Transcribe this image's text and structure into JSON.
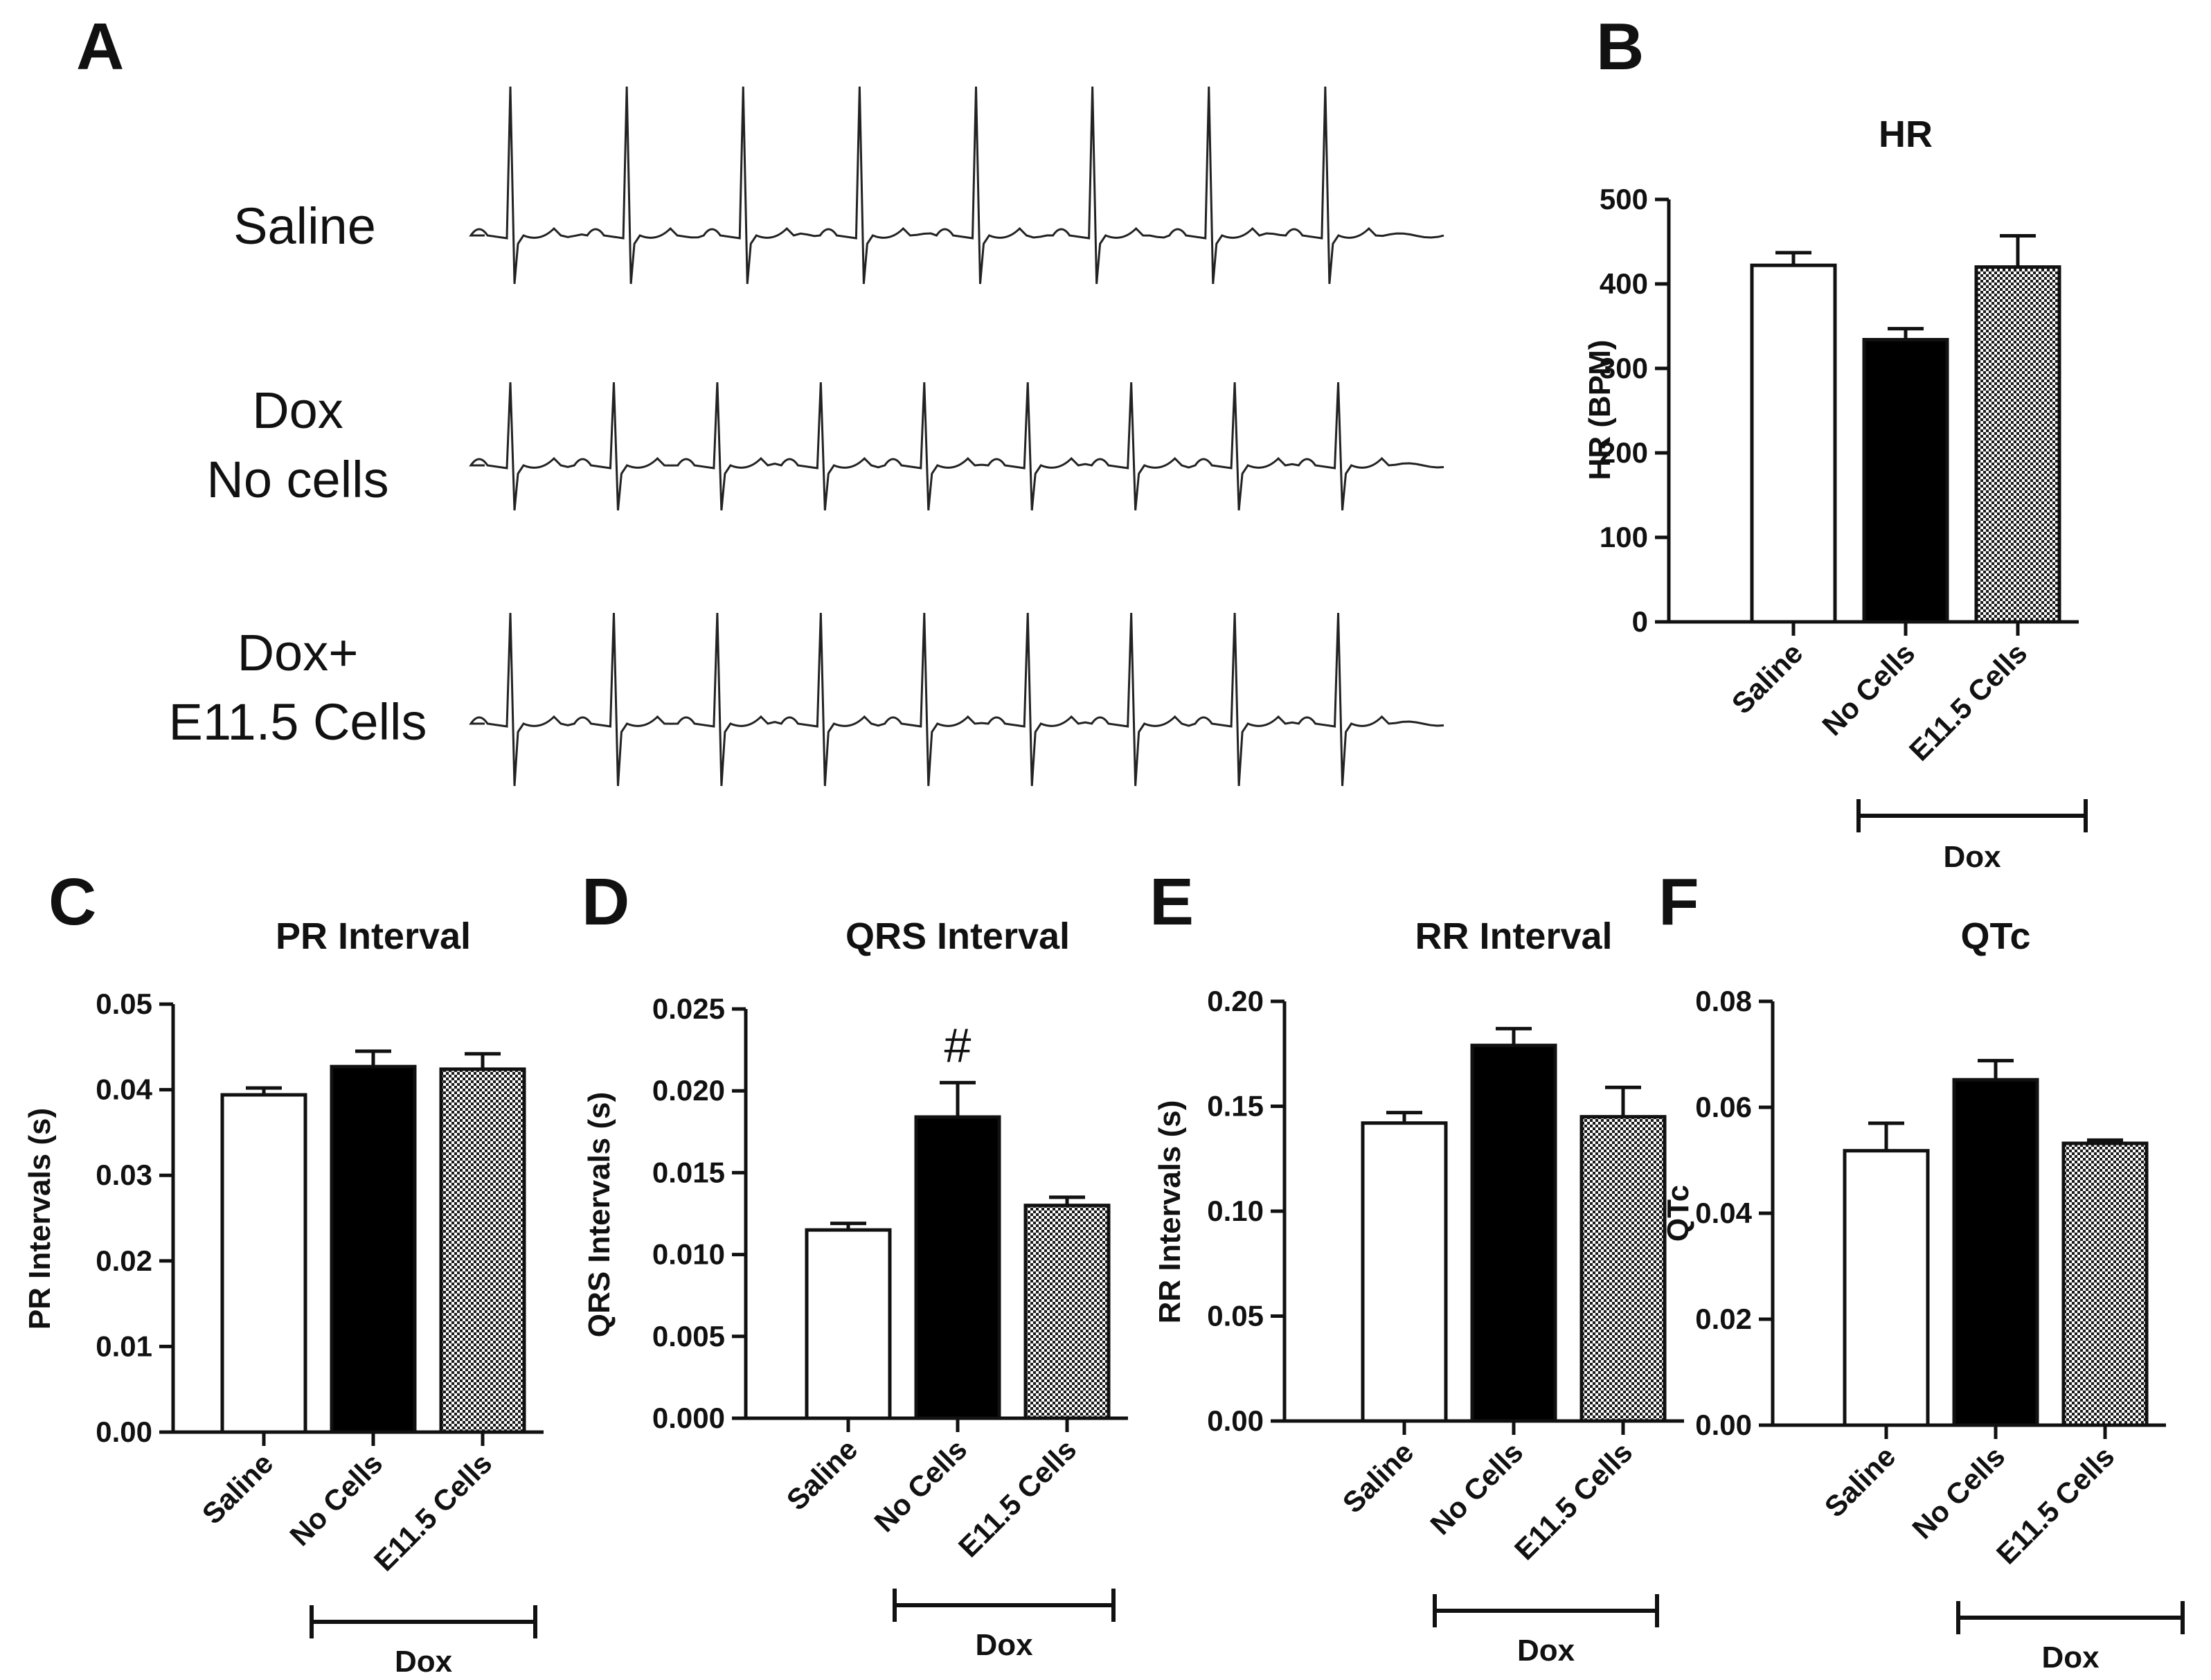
{
  "panels": {
    "A": "A",
    "B": "B",
    "C": "C",
    "D": "D",
    "E": "E",
    "F": "F"
  },
  "ecg": {
    "saline": {
      "line1": "Saline",
      "line2": "",
      "beats": 8
    },
    "dox_no_cells": {
      "line1": "Dox",
      "line2": "No cells",
      "beats": 9
    },
    "dox_e115": {
      "line1": "Dox+",
      "line2": "E11.5 Cells",
      "beats": 9
    }
  },
  "colors": {
    "saline": "#ffffff",
    "no_cells": "#000000",
    "e115": "checker",
    "axis": "#111111"
  },
  "chart_data": [
    {
      "id": "B",
      "type": "bar",
      "title": "HR",
      "ylabel": "HR (BPM)",
      "xlabel": "",
      "categories": [
        "Saline",
        "No Cells",
        "E11.5 Cells"
      ],
      "values": [
        422,
        334,
        420
      ],
      "errors": [
        15,
        13,
        37
      ],
      "ylim": [
        0,
        500
      ],
      "yticks": [
        "0",
        "100",
        "200",
        "300",
        "400",
        "500"
      ],
      "group_label": "Dox",
      "annotation": ""
    },
    {
      "id": "C",
      "type": "bar",
      "title": "PR Interval",
      "ylabel": "PR Intervals (s)",
      "xlabel": "",
      "categories": [
        "Saline",
        "No Cells",
        "E11.5 Cells"
      ],
      "values": [
        0.0394,
        0.0427,
        0.0424
      ],
      "errors": [
        0.0008,
        0.0018,
        0.0018
      ],
      "ylim": [
        0,
        0.05
      ],
      "yticks": [
        "0.00",
        "0.01",
        "0.02",
        "0.03",
        "0.04",
        "0.05"
      ],
      "group_label": "Dox",
      "annotation": ""
    },
    {
      "id": "D",
      "type": "bar",
      "title": "QRS Interval",
      "ylabel": "QRS Intervals (s)",
      "xlabel": "",
      "categories": [
        "Saline",
        "No Cells",
        "E11.5 Cells"
      ],
      "values": [
        0.0115,
        0.0184,
        0.013
      ],
      "errors": [
        0.0004,
        0.0021,
        0.0005
      ],
      "ylim": [
        0,
        0.025
      ],
      "yticks": [
        "0.000",
        "0.005",
        "0.010",
        "0.015",
        "0.020",
        "0.025"
      ],
      "group_label": "Dox",
      "annotation": "#"
    },
    {
      "id": "E",
      "type": "bar",
      "title": "RR Interval",
      "ylabel": "RR  Intervals (s)",
      "xlabel": "",
      "categories": [
        "Saline",
        "No Cells",
        "E11.5 Cells"
      ],
      "values": [
        0.142,
        0.179,
        0.145
      ],
      "errors": [
        0.005,
        0.008,
        0.014
      ],
      "ylim": [
        0,
        0.2
      ],
      "yticks": [
        "0.00",
        "0.05",
        "0.10",
        "0.15",
        "0.20"
      ],
      "group_label": "Dox",
      "annotation": ""
    },
    {
      "id": "F",
      "type": "bar",
      "title": "QTc",
      "ylabel": "QTc",
      "xlabel": "",
      "categories": [
        "Saline",
        "No Cells",
        "E11.5 Cells"
      ],
      "values": [
        0.0518,
        0.0652,
        0.0532
      ],
      "errors": [
        0.0052,
        0.0036,
        0.0006
      ],
      "ylim": [
        0,
        0.08
      ],
      "yticks": [
        "0.00",
        "0.02",
        "0.04",
        "0.06",
        "0.08"
      ],
      "group_label": "Dox",
      "annotation": ""
    }
  ]
}
